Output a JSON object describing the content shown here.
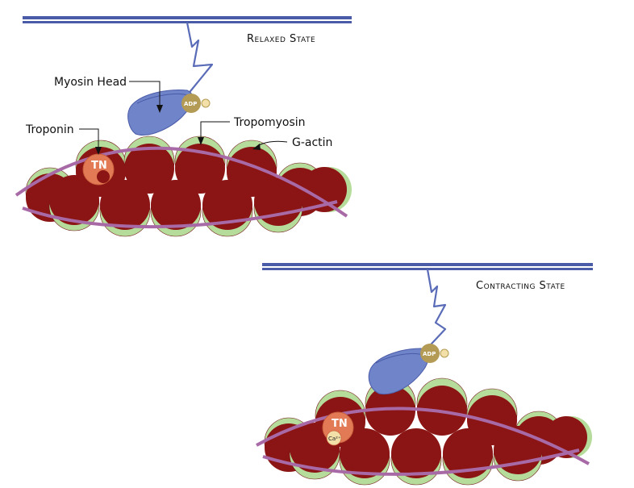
{
  "relaxed": {
    "state_label": "Relaxed State",
    "myosin_head_label": "Myosin Head",
    "troponin_label": "Troponin",
    "tropomyosin_label": "Tropomyosin",
    "g_actin_label": "G-actin",
    "tn_label": "TN",
    "adp_label": "ADP"
  },
  "contracting": {
    "state_label": "Contracting State",
    "tn_label": "TN",
    "ca_label": "Ca²⁺",
    "adp_label": "ADP"
  },
  "colors": {
    "thick_filament": "#4a5ba8",
    "myosin_head": "#6f84c9",
    "actin": "#8b1414",
    "actin_site": "#b5dc9a",
    "tropomyosin": "#a86aa6",
    "troponin": "#e27a55",
    "adp": "#b39a55",
    "phosphate": "#f2e0a8"
  }
}
